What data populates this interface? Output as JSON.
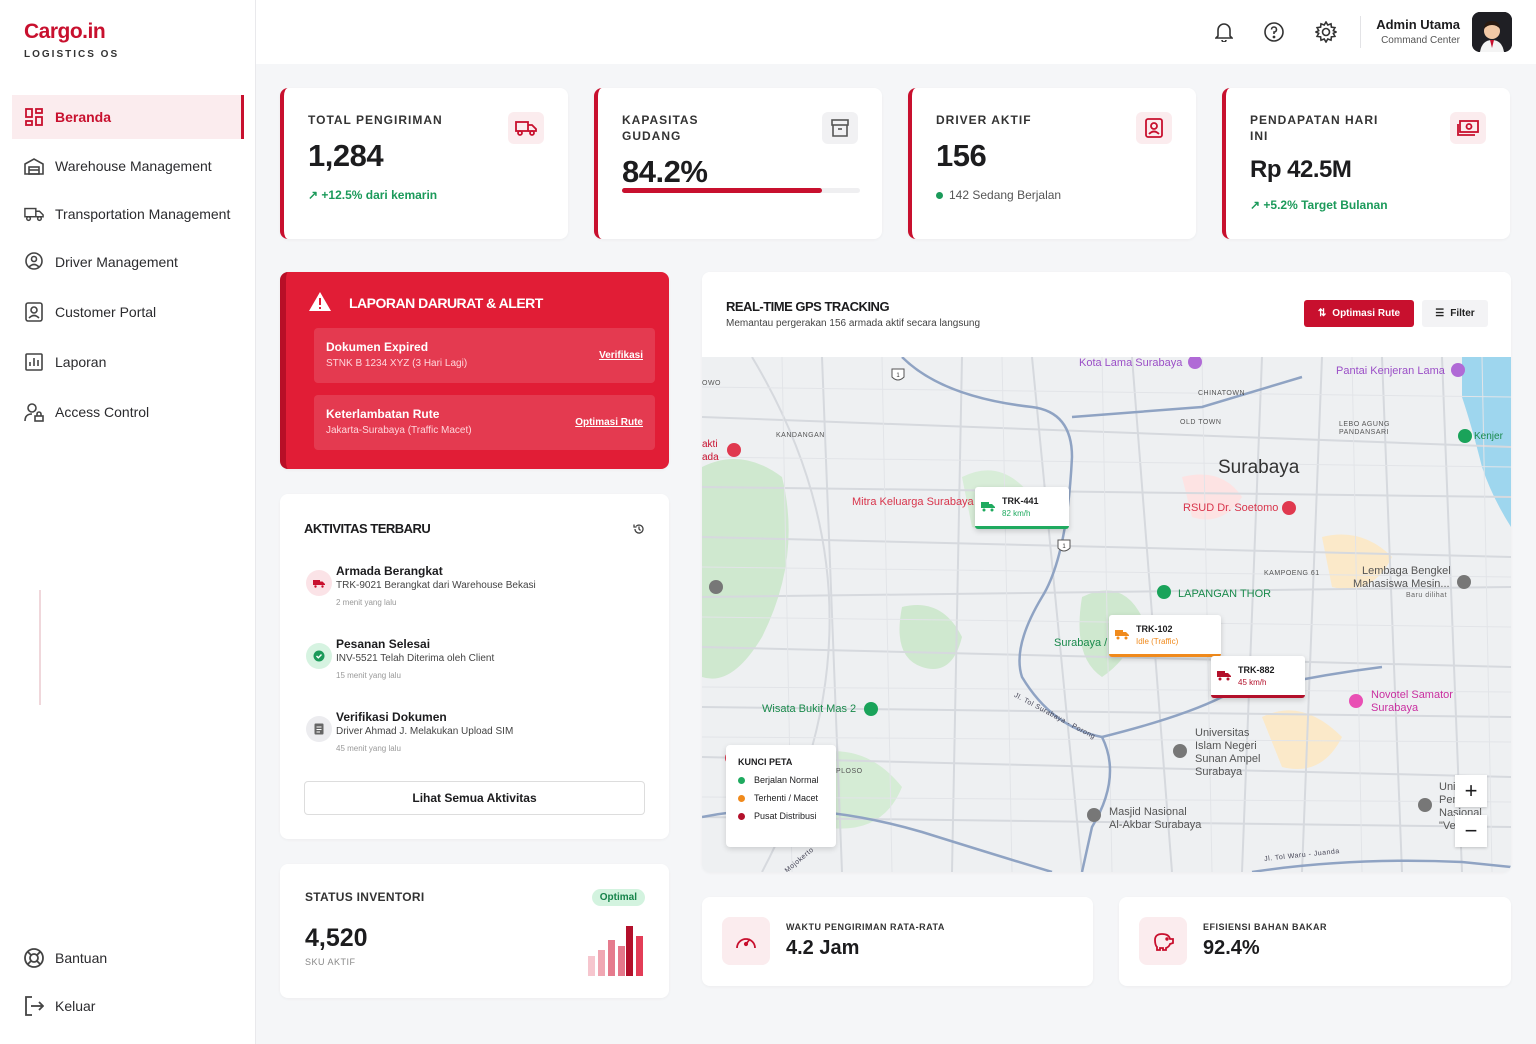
{
  "brand": {
    "name": "Cargo.in",
    "tagline": "LOGISTICS OS"
  },
  "sidebar": {
    "items": [
      {
        "label": "Beranda",
        "icon": "dashboard-icon",
        "active": true
      },
      {
        "label": "Warehouse Management",
        "icon": "warehouse-icon"
      },
      {
        "label": "Transportation Management",
        "icon": "truck-icon"
      },
      {
        "label": "Driver Management",
        "icon": "location-pin-icon"
      },
      {
        "label": "Customer Portal",
        "icon": "user-portrait-icon"
      },
      {
        "label": "Laporan",
        "icon": "bar-chart-icon"
      },
      {
        "label": "Access Control",
        "icon": "user-lock-icon"
      }
    ],
    "footer": [
      {
        "label": "Bantuan",
        "icon": "lifebuoy-icon"
      },
      {
        "label": "Keluar",
        "icon": "logout-icon"
      }
    ]
  },
  "topbar": {
    "user_name": "Admin Utama",
    "user_role": "Command Center",
    "icons": [
      "bell-icon",
      "help-icon",
      "gear-icon"
    ]
  },
  "kpis": [
    {
      "label": "TOTAL PENGIRIMAN",
      "value": "1,284",
      "sub": "+12.5% dari kemarin",
      "icon": "truck-icon"
    },
    {
      "label": "KAPASITAS GUDANG",
      "value": "84.2%",
      "progress": 0.842,
      "icon": "archive-icon"
    },
    {
      "label": "DRIVER AKTIF",
      "value": "156",
      "sub": "142 Sedang Berjalan",
      "icon": "id-badge-icon"
    },
    {
      "label": "PENDAPATAN HARI INI",
      "value": "Rp 42.5M",
      "sub": "+5.2% Target Bulanan",
      "icon": "money-icon"
    }
  ],
  "alerts": {
    "title": "LAPORAN DARURAT & ALERT",
    "items": [
      {
        "title": "Dokumen Expired",
        "detail": "STNK B 1234 XYZ (3 Hari Lagi)",
        "action": "Verifikasi"
      },
      {
        "title": "Keterlambatan Rute",
        "detail": "Jakarta-Surabaya (Traffic Macet)",
        "action": "Optimasi Rute"
      }
    ]
  },
  "activity": {
    "title": "AKTIVITAS TERBARU",
    "items": [
      {
        "title": "Armada Berangkat",
        "detail": "TRK-9021 Berangkat dari Warehouse Bekasi",
        "time": "2 menit yang lalu"
      },
      {
        "title": "Pesanan Selesai",
        "detail": "INV-5521 Telah Diterima oleh Client",
        "time": "15 menit yang lalu"
      },
      {
        "title": "Verifikasi Dokumen",
        "detail": "Driver Ahmad J. Melakukan Upload SIM",
        "time": "45 menit yang lalu"
      }
    ],
    "button": "Lihat Semua Aktivitas"
  },
  "inventory": {
    "title": "STATUS INVENTORI",
    "badge": "Optimal",
    "value": "4,520",
    "sub": "SKU AKTIF"
  },
  "map": {
    "title": "REAL-TIME GPS TRACKING",
    "subtitle": "Memantau pergerakan 156 armada aktif secara langsung",
    "btn_optimize": "Optimasi Rute",
    "btn_filter": "Filter",
    "city": "Surabaya",
    "places": {
      "kota_lama": "Kota Lama Surabaya",
      "pantai": "Pantai Kenjeran Lama",
      "chinatown": "CHINATOWN",
      "old_town": "OLD TOWN",
      "lebo1": "LEBO AGUNG",
      "lebo2": "PANDANSARI",
      "kandangan": "KANDANGAN",
      "kenjer": "Kenjer",
      "mitra": "Mitra Keluarga Surabaya",
      "rsud": "RSUD Dr. Soetomo",
      "kampoeng": "KAMPOENG 61",
      "lembaga1": "Lembaga Bengkel",
      "lembaga2": "Mahasiswa Mesin...",
      "baru": "Baru dilihat",
      "lapangan": "LAPANGAN THOR",
      "surabaya_k": "Surabaya / K",
      "novotel1": "Novotel Samator",
      "novotel2": "Surabaya",
      "wisata": "Wisata Bukit Mas 2",
      "uin1": "Universitas",
      "uin2": "Islam Negeri",
      "uin3": "Sunan Ampel",
      "uin4": "Surabaya",
      "masjid1": "Masjid Nasional",
      "masjid2": "Al-Akbar Surabaya",
      "ploso": "PLOSO",
      "owo": "OWO",
      "akti": "akti",
      "ada": "ada",
      "uni_frag1": "Uni",
      "uni_frag2": "Per",
      "uni_frag3": "Nasional",
      "uni_frag4": "\"Ve",
      "road1": "Jl. Tol Surabaya - Porong",
      "road2": "Jl. Tol Waru - Juanda",
      "road3": "Mojokerto"
    },
    "trucks": [
      {
        "id": "TRK-441",
        "speed": "82 km/h",
        "status": "normal"
      },
      {
        "id": "TRK-102",
        "speed": "Idle (Traffic)",
        "status": "stopped"
      },
      {
        "id": "TRK-882",
        "speed": "45 km/h",
        "status": "hub"
      }
    ],
    "legend": {
      "title": "KUNCI PETA",
      "items": [
        {
          "label": "Berjalan Normal",
          "color": "#1faa5f"
        },
        {
          "label": "Terhenti / Macet",
          "color": "#f08a1c"
        },
        {
          "label": "Pusat Distribusi",
          "color": "#b3102b"
        }
      ]
    },
    "zoom": {
      "in": "+",
      "out": "−"
    }
  },
  "metrics": [
    {
      "label": "WAKTU PENGIRIMAN RATA-RATA",
      "value": "4.2 Jam",
      "icon": "speedometer-icon"
    },
    {
      "label": "EFISIENSI BAHAN BAKAR",
      "value": "92.4%",
      "icon": "piggy-bank-icon"
    }
  ],
  "colors": {
    "brand": "#c8102e",
    "success": "#1b9a5a",
    "warning": "#f08a1c"
  }
}
